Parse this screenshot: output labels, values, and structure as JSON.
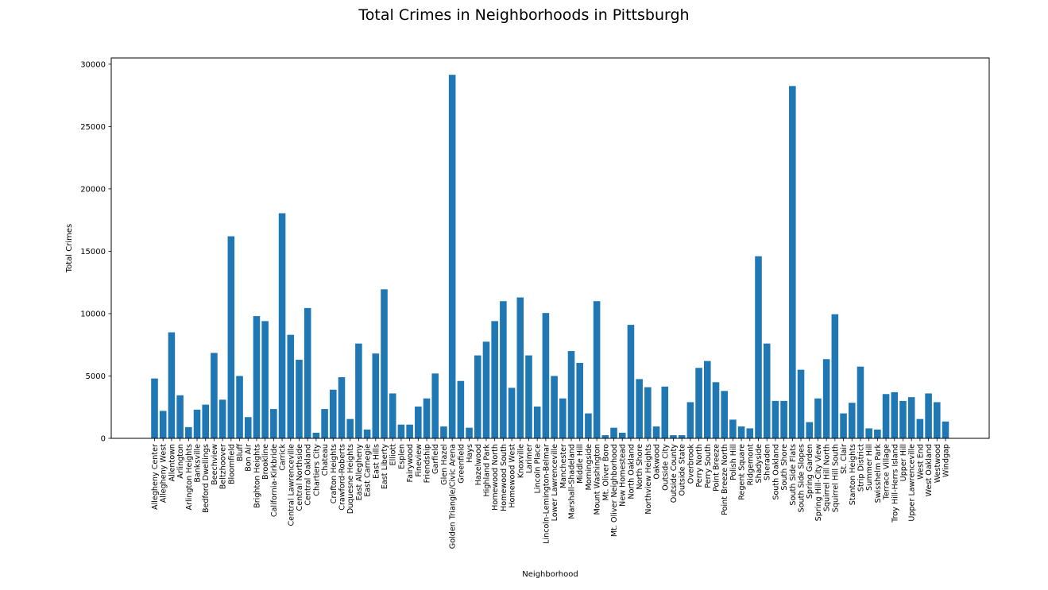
{
  "chart_data": {
    "type": "bar",
    "title": "Total Crimes in Neighborhoods in Pittsburgh",
    "xlabel": "Neighborhood",
    "ylabel": "Total Crimes",
    "ylim": [
      0,
      30500
    ],
    "yticks": [
      0,
      5000,
      10000,
      15000,
      20000,
      25000,
      30000
    ],
    "grid": false,
    "bar_color": "#1f77b4",
    "categories": [
      "Allegheny Center",
      "Allegheny West",
      "Allentown",
      "Arlington",
      "Arlington Heights",
      "Banksville",
      "Bedford Dwellings",
      "Beechview",
      "Beltzhoover",
      "Bloomfield",
      "Bluff",
      "Bon Air",
      "Brighton Heights",
      "Brookline",
      "California-Kirkbride",
      "Carrick",
      "Central Lawrenceville",
      "Central Northside",
      "Central Oakland",
      "Chartiers City",
      "Chateau",
      "Crafton Heights",
      "Crawford-Roberts",
      "Duquesne Heights",
      "East Allegheny",
      "East Carnegie",
      "East Hills",
      "East Liberty",
      "Elliott",
      "Esplen",
      "Fairywood",
      "Fineview",
      "Friendship",
      "Garfield",
      "Glen Hazel",
      "Golden Triangle/Civic Arena",
      "Greenfield",
      "Hays",
      "Hazelwood",
      "Highland Park",
      "Homewood North",
      "Homewood South",
      "Homewood West",
      "Knoxville",
      "Larimer",
      "Lincoln Place",
      "Lincoln-Lemington-Belmar",
      "Lower Lawrenceville",
      "Manchester",
      "Marshall-Shadeland",
      "Middle Hill",
      "Morningside",
      "Mount Washington",
      "Mt. Oliver Boro",
      "Mt. Oliver Neighborhood",
      "New Homestead",
      "North Oakland",
      "North Shore",
      "Northview Heights",
      "Oakwood",
      "Outside City",
      "Outside County",
      "Outside State",
      "Overbrook",
      "Perry North",
      "Perry South",
      "Point Breeze",
      "Point Breeze North",
      "Polish Hill",
      "Regent Square",
      "Ridgemont",
      "Shadyside",
      "Sheraden",
      "South Oakland",
      "South Shore",
      "South Side Flats",
      "South Side Slopes",
      "Spring Garden",
      "Spring Hill-City View",
      "Squirrel Hill North",
      "Squirrel Hill South",
      "St. Clair",
      "Stanton Heights",
      "Strip District",
      "Summer Hill",
      "Swisshelm Park",
      "Terrace Village",
      "Troy Hill-Herrs Island",
      "Upper Hill",
      "Upper Lawrenceville",
      "West End",
      "West Oakland",
      "Westwood",
      "Windgap"
    ],
    "values": [
      4800,
      2200,
      8500,
      3450,
      900,
      2300,
      2700,
      6850,
      3100,
      16200,
      5000,
      1700,
      9800,
      9400,
      2350,
      18050,
      8300,
      6300,
      10450,
      450,
      2350,
      3900,
      4900,
      1550,
      7600,
      700,
      6800,
      11950,
      3600,
      1100,
      1100,
      2550,
      3200,
      5200,
      950,
      29150,
      4600,
      850,
      6650,
      7750,
      9400,
      11000,
      4050,
      11300,
      6650,
      2550,
      10050,
      5000,
      3200,
      7000,
      6050,
      2000,
      11000,
      250,
      850,
      450,
      9100,
      4750,
      4100,
      950,
      4150,
      250,
      250,
      2900,
      5650,
      6200,
      4500,
      3800,
      1500,
      950,
      800,
      14600,
      7600,
      3000,
      3000,
      28250,
      5500,
      1300,
      3200,
      6350,
      9950,
      2000,
      2850,
      5750,
      800,
      700,
      3550,
      3700,
      3000,
      3300,
      1550,
      3600,
      2900,
      1350
    ]
  }
}
